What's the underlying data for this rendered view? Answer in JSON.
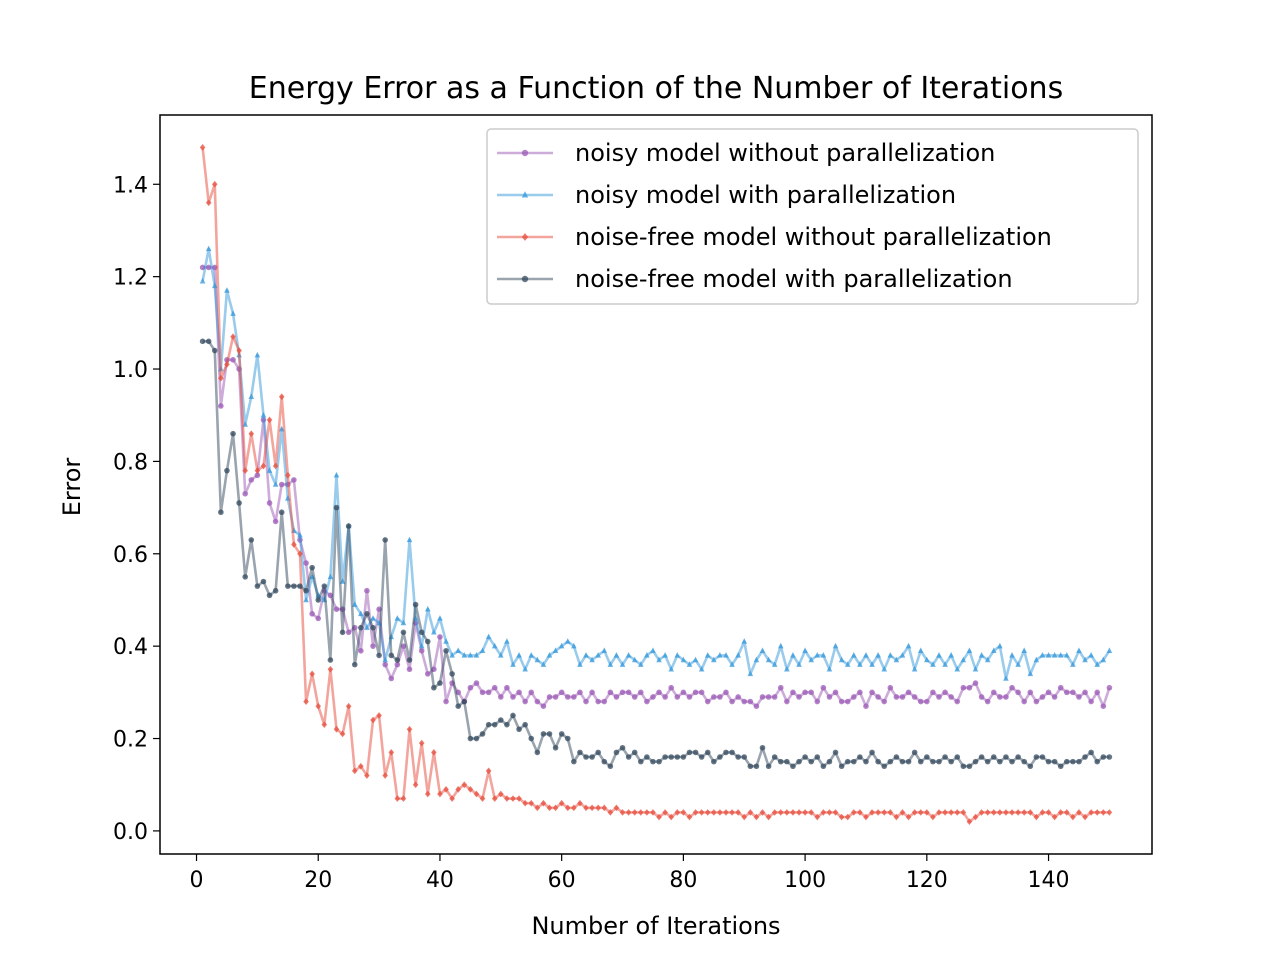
{
  "chart_data": {
    "type": "line",
    "title": "Energy Error as a Function of the Number of Iterations",
    "xlabel": "Number of Iterations",
    "ylabel": "Error",
    "xlim": [
      -6,
      157
    ],
    "ylim": [
      -0.05,
      1.55
    ],
    "xticks": [
      0,
      20,
      40,
      60,
      80,
      100,
      120,
      140
    ],
    "yticks": [
      0.0,
      0.2,
      0.4,
      0.6,
      0.8,
      1.0,
      1.2,
      1.4
    ],
    "grid": false,
    "legend_position": "top-right",
    "series": [
      {
        "name": "noisy model without parallelization",
        "color": "#9b59b6",
        "marker": "circle",
        "values": [
          1.22,
          1.22,
          1.22,
          0.92,
          1.02,
          1.02,
          1.0,
          0.73,
          0.76,
          0.77,
          0.89,
          0.71,
          0.67,
          0.75,
          0.75,
          0.76,
          0.63,
          0.58,
          0.47,
          0.46,
          0.52,
          0.51,
          0.48,
          0.48,
          0.43,
          0.44,
          0.39,
          0.52,
          0.4,
          0.48,
          0.36,
          0.33,
          0.36,
          0.4,
          0.35,
          0.45,
          0.39,
          0.34,
          0.35,
          0.42,
          0.28,
          0.32,
          0.3,
          0.28,
          0.31,
          0.32,
          0.3,
          0.3,
          0.31,
          0.29,
          0.31,
          0.29,
          0.3,
          0.28,
          0.3,
          0.28,
          0.27,
          0.29,
          0.29,
          0.3,
          0.29,
          0.29,
          0.3,
          0.28,
          0.3,
          0.28,
          0.28,
          0.3,
          0.29,
          0.3,
          0.3,
          0.29,
          0.3,
          0.28,
          0.29,
          0.3,
          0.29,
          0.31,
          0.29,
          0.3,
          0.29,
          0.3,
          0.3,
          0.28,
          0.29,
          0.29,
          0.3,
          0.28,
          0.29,
          0.28,
          0.28,
          0.27,
          0.29,
          0.29,
          0.29,
          0.31,
          0.28,
          0.3,
          0.29,
          0.3,
          0.3,
          0.28,
          0.31,
          0.29,
          0.3,
          0.28,
          0.28,
          0.29,
          0.3,
          0.27,
          0.3,
          0.29,
          0.28,
          0.31,
          0.29,
          0.29,
          0.3,
          0.29,
          0.28,
          0.28,
          0.3,
          0.29,
          0.3,
          0.29,
          0.28,
          0.31,
          0.31,
          0.32,
          0.29,
          0.28,
          0.3,
          0.29,
          0.29,
          0.31,
          0.3,
          0.28,
          0.3,
          0.28,
          0.29,
          0.3,
          0.29,
          0.31,
          0.3,
          0.3,
          0.29,
          0.3,
          0.28,
          0.3,
          0.27,
          0.31
        ]
      },
      {
        "name": "noisy model with parallelization",
        "color": "#3498db",
        "marker": "triangle",
        "values": [
          1.19,
          1.26,
          1.18,
          1.0,
          1.17,
          1.12,
          1.03,
          0.88,
          0.94,
          1.03,
          0.9,
          0.78,
          0.75,
          0.87,
          0.72,
          0.65,
          0.64,
          0.5,
          0.55,
          0.51,
          0.5,
          0.55,
          0.77,
          0.54,
          0.66,
          0.49,
          0.47,
          0.44,
          0.46,
          0.45,
          0.37,
          0.42,
          0.46,
          0.45,
          0.63,
          0.46,
          0.4,
          0.48,
          0.43,
          0.46,
          0.41,
          0.38,
          0.39,
          0.38,
          0.38,
          0.38,
          0.39,
          0.42,
          0.4,
          0.38,
          0.41,
          0.36,
          0.38,
          0.35,
          0.38,
          0.37,
          0.36,
          0.38,
          0.39,
          0.4,
          0.41,
          0.4,
          0.36,
          0.38,
          0.37,
          0.38,
          0.39,
          0.36,
          0.38,
          0.36,
          0.38,
          0.37,
          0.36,
          0.38,
          0.39,
          0.37,
          0.38,
          0.35,
          0.38,
          0.37,
          0.36,
          0.37,
          0.35,
          0.38,
          0.37,
          0.38,
          0.38,
          0.36,
          0.38,
          0.41,
          0.34,
          0.37,
          0.39,
          0.37,
          0.36,
          0.4,
          0.35,
          0.38,
          0.36,
          0.39,
          0.37,
          0.38,
          0.38,
          0.35,
          0.4,
          0.37,
          0.36,
          0.38,
          0.36,
          0.38,
          0.36,
          0.38,
          0.35,
          0.38,
          0.37,
          0.38,
          0.4,
          0.35,
          0.39,
          0.37,
          0.36,
          0.38,
          0.36,
          0.38,
          0.35,
          0.37,
          0.39,
          0.35,
          0.38,
          0.37,
          0.39,
          0.4,
          0.33,
          0.38,
          0.36,
          0.39,
          0.34,
          0.37,
          0.38,
          0.38,
          0.38,
          0.38,
          0.38,
          0.36,
          0.39,
          0.37,
          0.38,
          0.36,
          0.37,
          0.39
        ]
      },
      {
        "name": "noise-free model without parallelization",
        "color": "#e74c3c",
        "marker": "diamond",
        "values": [
          1.48,
          1.36,
          1.4,
          0.98,
          1.01,
          1.07,
          1.04,
          0.78,
          0.86,
          0.78,
          0.79,
          0.89,
          0.79,
          0.94,
          0.77,
          0.62,
          0.6,
          0.28,
          0.34,
          0.27,
          0.23,
          0.35,
          0.22,
          0.21,
          0.27,
          0.13,
          0.14,
          0.12,
          0.24,
          0.25,
          0.12,
          0.17,
          0.07,
          0.07,
          0.22,
          0.1,
          0.19,
          0.08,
          0.17,
          0.08,
          0.09,
          0.07,
          0.09,
          0.1,
          0.09,
          0.08,
          0.07,
          0.13,
          0.07,
          0.08,
          0.07,
          0.07,
          0.07,
          0.06,
          0.06,
          0.05,
          0.06,
          0.05,
          0.05,
          0.06,
          0.05,
          0.05,
          0.06,
          0.05,
          0.05,
          0.05,
          0.05,
          0.04,
          0.05,
          0.04,
          0.04,
          0.04,
          0.04,
          0.04,
          0.04,
          0.03,
          0.04,
          0.03,
          0.04,
          0.04,
          0.03,
          0.04,
          0.04,
          0.04,
          0.04,
          0.04,
          0.04,
          0.04,
          0.04,
          0.03,
          0.04,
          0.03,
          0.04,
          0.03,
          0.04,
          0.04,
          0.04,
          0.04,
          0.04,
          0.04,
          0.04,
          0.03,
          0.04,
          0.04,
          0.04,
          0.03,
          0.03,
          0.04,
          0.04,
          0.03,
          0.04,
          0.04,
          0.04,
          0.04,
          0.03,
          0.04,
          0.03,
          0.04,
          0.04,
          0.04,
          0.03,
          0.04,
          0.04,
          0.04,
          0.04,
          0.04,
          0.02,
          0.03,
          0.04,
          0.04,
          0.04,
          0.04,
          0.04,
          0.04,
          0.04,
          0.04,
          0.04,
          0.03,
          0.04,
          0.04,
          0.03,
          0.04,
          0.04,
          0.03,
          0.04,
          0.03,
          0.04,
          0.04,
          0.04,
          0.04
        ]
      },
      {
        "name": "noise-free model with parallelization",
        "color": "#34495e",
        "marker": "circle",
        "values": [
          1.06,
          1.06,
          1.04,
          0.69,
          0.78,
          0.86,
          0.71,
          0.55,
          0.63,
          0.53,
          0.54,
          0.51,
          0.52,
          0.69,
          0.53,
          0.53,
          0.53,
          0.52,
          0.57,
          0.5,
          0.53,
          0.37,
          0.7,
          0.43,
          0.66,
          0.36,
          0.44,
          0.47,
          0.44,
          0.38,
          0.63,
          0.38,
          0.37,
          0.43,
          0.37,
          0.49,
          0.43,
          0.41,
          0.31,
          0.32,
          0.39,
          0.34,
          0.27,
          0.28,
          0.2,
          0.2,
          0.21,
          0.23,
          0.23,
          0.24,
          0.23,
          0.25,
          0.22,
          0.23,
          0.2,
          0.17,
          0.21,
          0.21,
          0.18,
          0.21,
          0.2,
          0.15,
          0.17,
          0.16,
          0.16,
          0.17,
          0.15,
          0.14,
          0.17,
          0.18,
          0.16,
          0.17,
          0.15,
          0.16,
          0.15,
          0.15,
          0.16,
          0.16,
          0.16,
          0.16,
          0.17,
          0.17,
          0.16,
          0.17,
          0.15,
          0.16,
          0.17,
          0.17,
          0.16,
          0.16,
          0.14,
          0.14,
          0.18,
          0.14,
          0.16,
          0.15,
          0.15,
          0.14,
          0.15,
          0.16,
          0.15,
          0.16,
          0.14,
          0.15,
          0.17,
          0.14,
          0.15,
          0.15,
          0.16,
          0.15,
          0.17,
          0.15,
          0.14,
          0.15,
          0.16,
          0.15,
          0.15,
          0.17,
          0.15,
          0.16,
          0.15,
          0.15,
          0.16,
          0.15,
          0.16,
          0.14,
          0.14,
          0.15,
          0.16,
          0.15,
          0.16,
          0.15,
          0.16,
          0.15,
          0.16,
          0.15,
          0.14,
          0.16,
          0.16,
          0.15,
          0.15,
          0.14,
          0.15,
          0.15,
          0.15,
          0.16,
          0.17,
          0.15,
          0.16,
          0.16
        ]
      }
    ]
  }
}
